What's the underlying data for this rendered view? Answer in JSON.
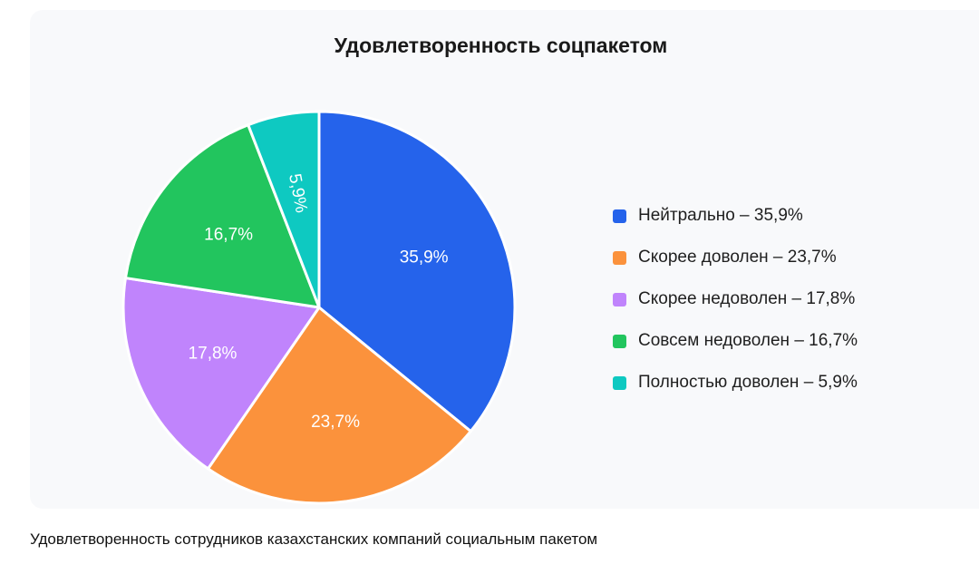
{
  "chart_data": {
    "type": "pie",
    "title": "Удовлетворенность соцпакетом",
    "categories": [
      "Нейтрально",
      "Скорее доволен",
      "Скорее недоволен",
      "Совсем недоволен",
      "Полностью доволен"
    ],
    "values": [
      35.9,
      23.7,
      17.8,
      16.7,
      5.9
    ],
    "data_labels": [
      "35,9%",
      "23,7%",
      "17,8%",
      "16,7%",
      "5,9%"
    ],
    "legend_labels": [
      "Нейтрально – 35,9%",
      "Скорее доволен – 23,7%",
      "Скорее недоволен – 17,8%",
      "Совсем недоволен – 16,7%",
      "Полностью доволен – 5,9%"
    ],
    "colors": [
      "#2563eb",
      "#fb923c",
      "#c084fc",
      "#22c55e",
      "#0ec9c1"
    ],
    "legend_position": "right",
    "start_angle": "top-clockwise"
  },
  "caption": "Удовлетворенность сотрудников казахстанских компаний социальным пакетом"
}
